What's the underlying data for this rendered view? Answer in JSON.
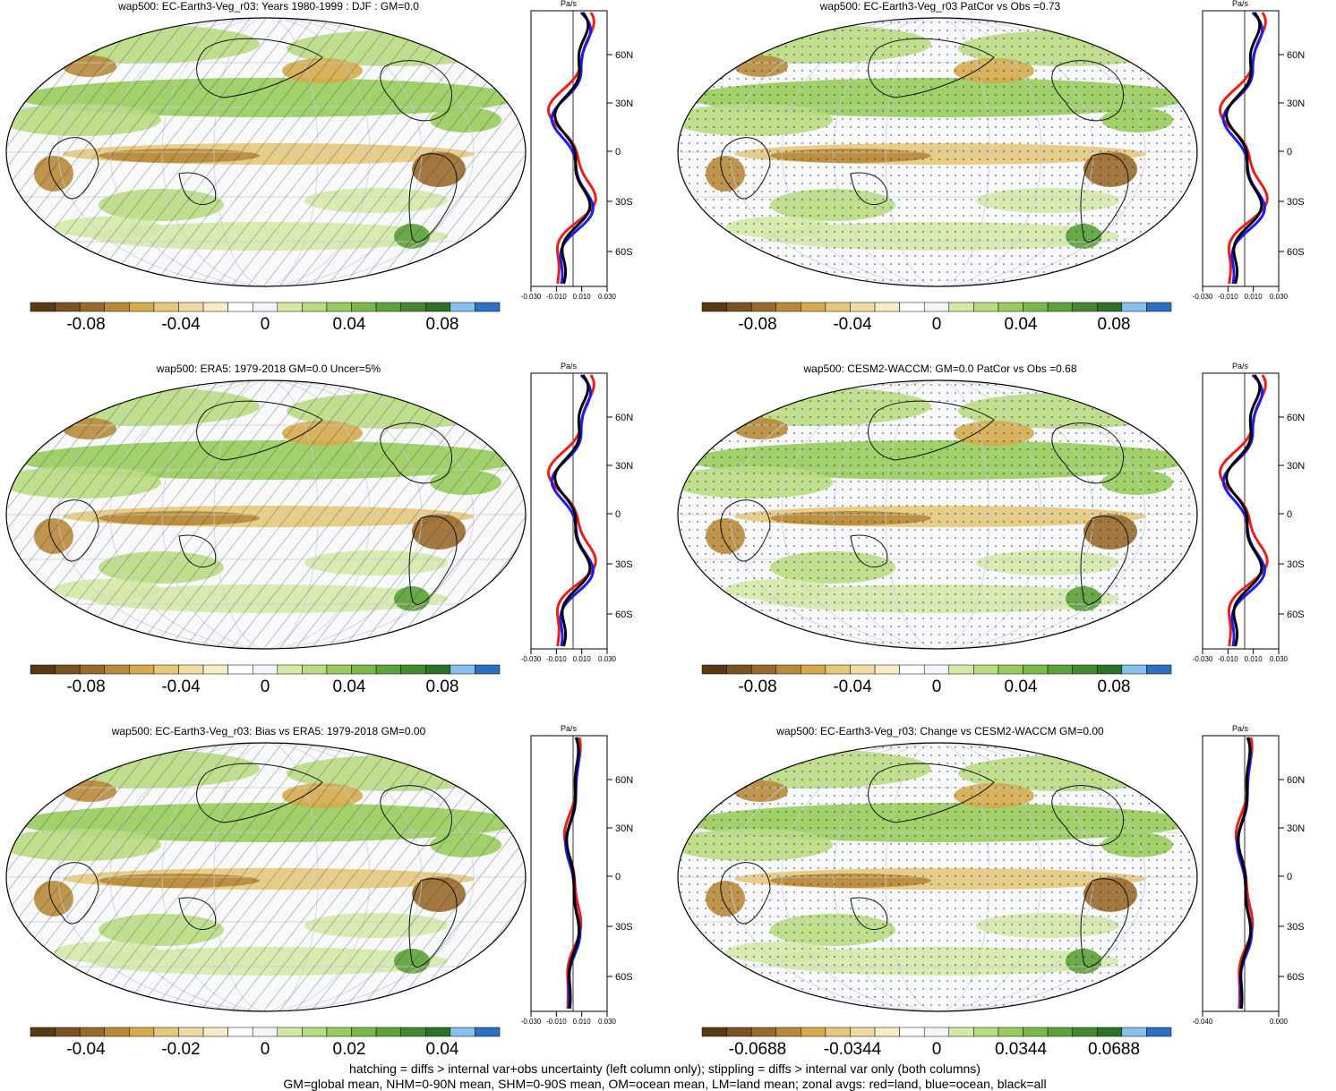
{
  "palette": [
    "#5a3a14",
    "#7a5224",
    "#9a6a2c",
    "#b88a3a",
    "#d4aa4a",
    "#e6c87a",
    "#efdca2",
    "#f6ecc8",
    "#ffffff",
    "#f2f6fb",
    "#d4e9a8",
    "#b8dc80",
    "#98cc5c",
    "#7ab848",
    "#5ea23c",
    "#458830",
    "#2e7028",
    "#88c0ec",
    "#2c70c4"
  ],
  "colors": {
    "land": "#e8201c",
    "ocean": "#1c1cf0",
    "all": "#000000"
  },
  "lat_labels": [
    "60N",
    "30N",
    "0",
    "30S",
    "60S"
  ],
  "zonal_unit": "Pa/s",
  "panels": [
    {
      "title": "wap500: EC-Earth3-Veg_r03: Years 1980-1999 : DJF : GM=0.0",
      "colorbar_labels": [
        "-0.08",
        "-0.04",
        "0",
        "0.04",
        "0.08"
      ],
      "zonal_ticks": [
        "-0.030",
        "-0.010",
        "0.010",
        "0.030"
      ],
      "hatching": true
    },
    {
      "title": "wap500: EC-Earth3-Veg_r03 PatCor vs Obs =0.73",
      "colorbar_labels": [
        "-0.08",
        "-0.04",
        "0",
        "0.04",
        "0.08"
      ],
      "zonal_ticks": [
        "-0.030",
        "-0.010",
        "0.010",
        "0.030"
      ],
      "hatching": false
    },
    {
      "title": "wap500: ERA5: 1979-2018 GM=0.0 Uncer=5%",
      "colorbar_labels": [
        "-0.08",
        "-0.04",
        "0",
        "0.04",
        "0.08"
      ],
      "zonal_ticks": [
        "-0.030",
        "-0.010",
        "0.010",
        "0.030"
      ],
      "hatching": true
    },
    {
      "title": "wap500: CESM2-WACCM: GM=0.0 PatCor vs Obs =0.68",
      "colorbar_labels": [
        "-0.08",
        "-0.04",
        "0",
        "0.04",
        "0.08"
      ],
      "zonal_ticks": [
        "-0.030",
        "-0.010",
        "0.010",
        "0.030"
      ],
      "hatching": false
    },
    {
      "title": "wap500: EC-Earth3-Veg_r03: Bias vs ERA5: 1979-2018 GM=0.00",
      "colorbar_labels": [
        "-0.04",
        "-0.02",
        "0",
        "0.02",
        "0.04"
      ],
      "zonal_ticks": [
        "-0.030",
        "-0.010",
        "0.010",
        "0.030"
      ],
      "hatching": true
    },
    {
      "title": "wap500: EC-Earth3-Veg_r03: Change vs CESM2-WACCM GM=0.00",
      "colorbar_labels": [
        "-0.0688",
        "-0.0344",
        "0",
        "0.0344",
        "0.0688"
      ],
      "zonal_ticks": [
        "-0.040",
        "0.000"
      ],
      "hatching": false
    }
  ],
  "footnotes": {
    "line1": "hatching = diffs > internal var+obs uncertainty (left column only); stippling = diffs > internal var only (both columns)",
    "line2": "GM=global mean, NHM=0-90N mean, SHM=0-90S mean, OM=ocean mean, LM=land mean; zonal avgs: red=land, blue=ocean, black=all"
  }
}
